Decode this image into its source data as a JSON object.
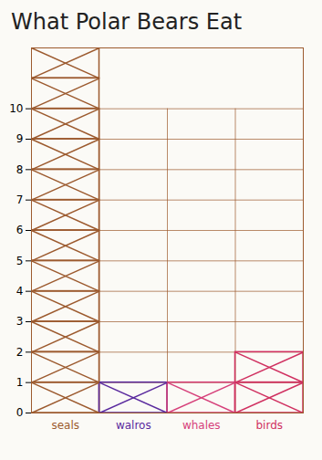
{
  "chart_data": {
    "type": "bar",
    "title": "What Polar Bears Eat",
    "categories": [
      "seals",
      "walros",
      "whales",
      "birds"
    ],
    "values": [
      12,
      1,
      1,
      2
    ],
    "colors": [
      "#9c5a2e",
      "#5a2a9e",
      "#d6407a",
      "#d03060"
    ],
    "ylim": [
      0,
      12
    ],
    "yticks": [
      0,
      1,
      2,
      3,
      4,
      5,
      6,
      7,
      8,
      9,
      10
    ],
    "grid": true
  }
}
